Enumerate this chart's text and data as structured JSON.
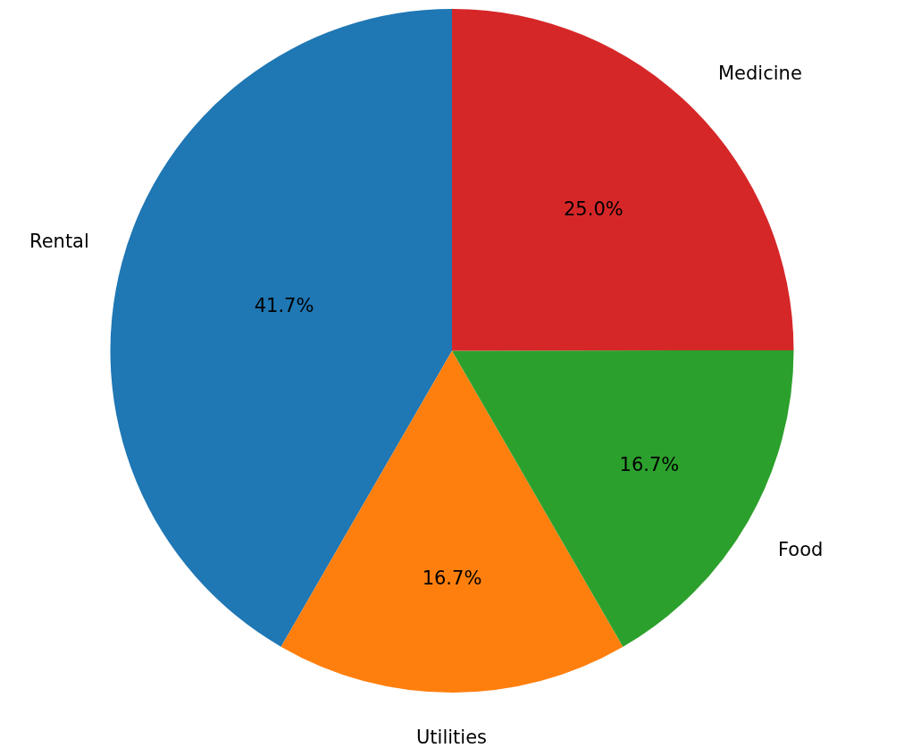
{
  "chart_data": {
    "type": "pie",
    "categories": [
      "Rental",
      "Utilities",
      "Food",
      "Medicine"
    ],
    "values": [
      41.7,
      16.7,
      16.7,
      25.0
    ],
    "value_labels": [
      "41.7%",
      "16.7%",
      "16.7%",
      "25.0%"
    ],
    "colors": [
      "#1f77b4",
      "#ff7f0e",
      "#2ca02c",
      "#d62728"
    ],
    "legend": false
  }
}
